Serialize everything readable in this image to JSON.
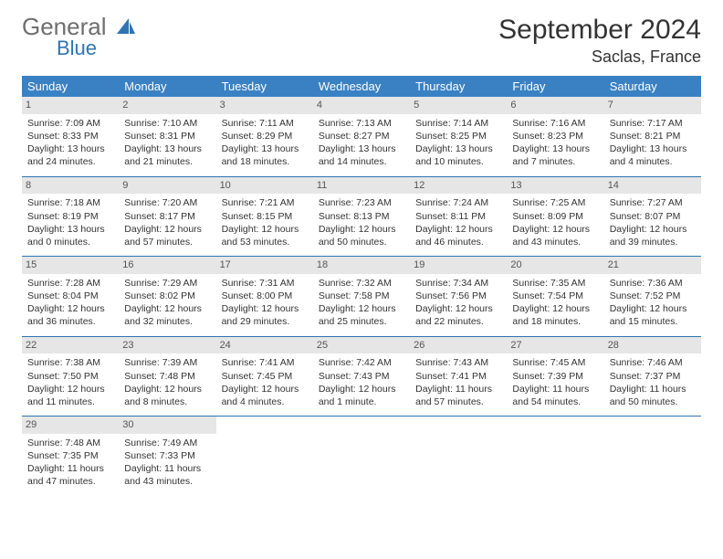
{
  "logo": {
    "text1": "General",
    "text2": "Blue"
  },
  "title": "September 2024",
  "location": "Saclas, France",
  "accent": "#3a81c4",
  "dayHeaders": [
    "Sunday",
    "Monday",
    "Tuesday",
    "Wednesday",
    "Thursday",
    "Friday",
    "Saturday"
  ],
  "weeks": [
    [
      {
        "n": "1",
        "r": "7:09 AM",
        "s": "8:33 PM",
        "d": "13 hours and 24 minutes."
      },
      {
        "n": "2",
        "r": "7:10 AM",
        "s": "8:31 PM",
        "d": "13 hours and 21 minutes."
      },
      {
        "n": "3",
        "r": "7:11 AM",
        "s": "8:29 PM",
        "d": "13 hours and 18 minutes."
      },
      {
        "n": "4",
        "r": "7:13 AM",
        "s": "8:27 PM",
        "d": "13 hours and 14 minutes."
      },
      {
        "n": "5",
        "r": "7:14 AM",
        "s": "8:25 PM",
        "d": "13 hours and 10 minutes."
      },
      {
        "n": "6",
        "r": "7:16 AM",
        "s": "8:23 PM",
        "d": "13 hours and 7 minutes."
      },
      {
        "n": "7",
        "r": "7:17 AM",
        "s": "8:21 PM",
        "d": "13 hours and 4 minutes."
      }
    ],
    [
      {
        "n": "8",
        "r": "7:18 AM",
        "s": "8:19 PM",
        "d": "13 hours and 0 minutes."
      },
      {
        "n": "9",
        "r": "7:20 AM",
        "s": "8:17 PM",
        "d": "12 hours and 57 minutes."
      },
      {
        "n": "10",
        "r": "7:21 AM",
        "s": "8:15 PM",
        "d": "12 hours and 53 minutes."
      },
      {
        "n": "11",
        "r": "7:23 AM",
        "s": "8:13 PM",
        "d": "12 hours and 50 minutes."
      },
      {
        "n": "12",
        "r": "7:24 AM",
        "s": "8:11 PM",
        "d": "12 hours and 46 minutes."
      },
      {
        "n": "13",
        "r": "7:25 AM",
        "s": "8:09 PM",
        "d": "12 hours and 43 minutes."
      },
      {
        "n": "14",
        "r": "7:27 AM",
        "s": "8:07 PM",
        "d": "12 hours and 39 minutes."
      }
    ],
    [
      {
        "n": "15",
        "r": "7:28 AM",
        "s": "8:04 PM",
        "d": "12 hours and 36 minutes."
      },
      {
        "n": "16",
        "r": "7:29 AM",
        "s": "8:02 PM",
        "d": "12 hours and 32 minutes."
      },
      {
        "n": "17",
        "r": "7:31 AM",
        "s": "8:00 PM",
        "d": "12 hours and 29 minutes."
      },
      {
        "n": "18",
        "r": "7:32 AM",
        "s": "7:58 PM",
        "d": "12 hours and 25 minutes."
      },
      {
        "n": "19",
        "r": "7:34 AM",
        "s": "7:56 PM",
        "d": "12 hours and 22 minutes."
      },
      {
        "n": "20",
        "r": "7:35 AM",
        "s": "7:54 PM",
        "d": "12 hours and 18 minutes."
      },
      {
        "n": "21",
        "r": "7:36 AM",
        "s": "7:52 PM",
        "d": "12 hours and 15 minutes."
      }
    ],
    [
      {
        "n": "22",
        "r": "7:38 AM",
        "s": "7:50 PM",
        "d": "12 hours and 11 minutes."
      },
      {
        "n": "23",
        "r": "7:39 AM",
        "s": "7:48 PM",
        "d": "12 hours and 8 minutes."
      },
      {
        "n": "24",
        "r": "7:41 AM",
        "s": "7:45 PM",
        "d": "12 hours and 4 minutes."
      },
      {
        "n": "25",
        "r": "7:42 AM",
        "s": "7:43 PM",
        "d": "12 hours and 1 minute."
      },
      {
        "n": "26",
        "r": "7:43 AM",
        "s": "7:41 PM",
        "d": "11 hours and 57 minutes."
      },
      {
        "n": "27",
        "r": "7:45 AM",
        "s": "7:39 PM",
        "d": "11 hours and 54 minutes."
      },
      {
        "n": "28",
        "r": "7:46 AM",
        "s": "7:37 PM",
        "d": "11 hours and 50 minutes."
      }
    ],
    [
      {
        "n": "29",
        "r": "7:48 AM",
        "s": "7:35 PM",
        "d": "11 hours and 47 minutes."
      },
      {
        "n": "30",
        "r": "7:49 AM",
        "s": "7:33 PM",
        "d": "11 hours and 43 minutes."
      },
      null,
      null,
      null,
      null,
      null
    ]
  ],
  "labels": {
    "sunrise": "Sunrise: ",
    "sunset": "Sunset: ",
    "daylight": "Daylight: "
  }
}
